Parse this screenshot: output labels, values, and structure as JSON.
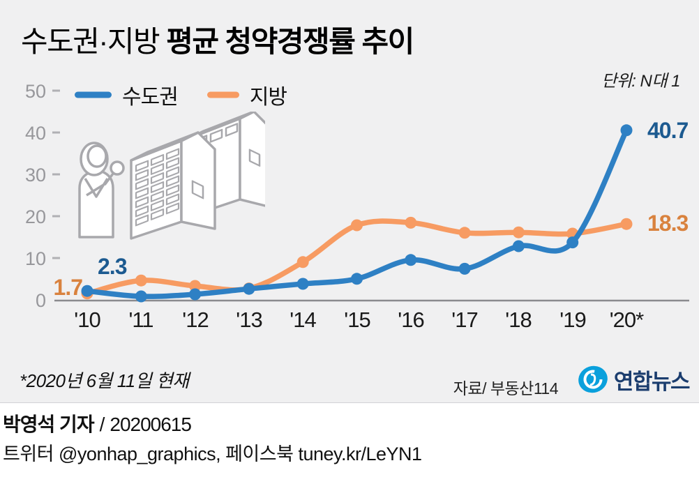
{
  "title": {
    "regular": "수도권·지방",
    "bold": "평균 청약경쟁률 추이"
  },
  "unit_label": "단위: N대 1",
  "chart_data": {
    "type": "line",
    "title": "수도권·지방 평균 청약경쟁률 추이",
    "unit": "N대 1",
    "x": [
      "'10",
      "'11",
      "'12",
      "'13",
      "'14",
      "'15",
      "'16",
      "'17",
      "'18",
      "'19",
      "'20*"
    ],
    "yticks": [
      "0",
      "10",
      "20",
      "30",
      "40",
      "50"
    ],
    "ylim": [
      0,
      50
    ],
    "grid": false,
    "legend_position": "top-left",
    "series": [
      {
        "name": "수도권",
        "color": "#2e80c4",
        "label_color": "#1c5a90",
        "values": [
          2.3,
          1.0,
          1.5,
          2.8,
          4.0,
          5.2,
          9.7,
          7.6,
          13.0,
          13.9,
          40.7
        ],
        "first_point_label": "2.3",
        "last_point_label": "40.7"
      },
      {
        "name": "지방",
        "color": "#f79b62",
        "label_color": "#d9823e",
        "values": [
          1.7,
          4.8,
          3.5,
          2.9,
          9.2,
          18.0,
          18.6,
          16.2,
          16.3,
          16.0,
          18.3
        ],
        "first_point_label": "1.7",
        "last_point_label": "18.3"
      }
    ]
  },
  "footnote": "*2020년 6월 11일 현재",
  "source": "자료/ 부동산114",
  "logo": {
    "name": "연합뉴스"
  },
  "byline": {
    "author": "박영석 기자",
    "separator": "/",
    "date": "20200615"
  },
  "social_line": "트위터 @yonhap_graphics, 페이스북 tuney.kr/LeYN1",
  "colors": {
    "panel_background": "#f0f0f1",
    "metro_line": "#2e80c4",
    "local_line": "#f79b62",
    "metro_value_label": "#1c5a90",
    "local_value_label": "#d9823e",
    "axis_line": "#8a8a8e",
    "y_tick_text": "#97979b",
    "x_tick_text": "#1a1a1a",
    "illustration_stroke": "#a8a8ac",
    "logo_blue": "#0aa0dc",
    "logo_navy": "#1b3d6e"
  }
}
